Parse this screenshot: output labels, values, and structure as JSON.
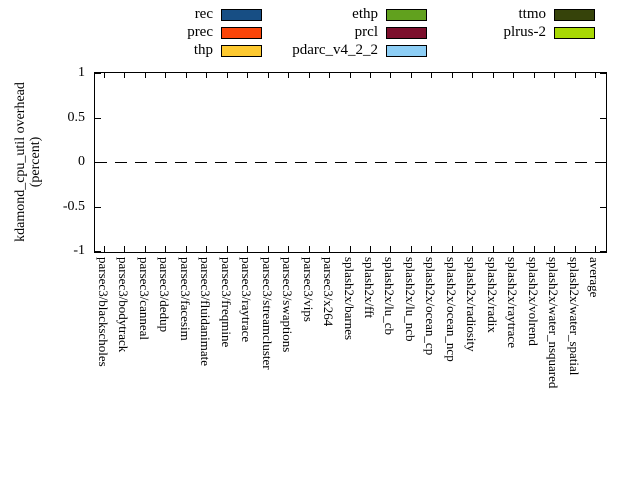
{
  "legend": {
    "columns": [
      {
        "items": [
          {
            "label": "rec",
            "color": "#174e84"
          },
          {
            "label": "prec",
            "color": "#fa4509"
          },
          {
            "label": "thp",
            "color": "#fdc930"
          }
        ]
      },
      {
        "items": [
          {
            "label": "ethp",
            "color": "#61a11e"
          },
          {
            "label": "prcl",
            "color": "#7c0f2c"
          },
          {
            "label": "pdarc_v4_2_2",
            "color": "#8dcef5"
          }
        ]
      },
      {
        "items": [
          {
            "label": "ttmo",
            "color": "#36430a"
          },
          {
            "label": "plrus-2",
            "color": "#a8d804"
          }
        ]
      }
    ]
  },
  "axes": {
    "ylabel_line1": "kdamond_cpu_util overhead",
    "ylabel_line2": "(percent)",
    "ytick_labels": [
      "1",
      "0.5",
      "0",
      "-0.5",
      "-1"
    ]
  },
  "chart_data": {
    "type": "bar",
    "title": "",
    "xlabel": "",
    "ylabel": "kdamond_cpu_util overhead (percent)",
    "ylim": [
      -1,
      1
    ],
    "yticks": [
      1,
      0.5,
      0,
      -0.5,
      -1
    ],
    "grid": false,
    "zero_line": "dashed",
    "legend_position": "top",
    "categories": [
      "parsec3/blackscholes",
      "parsec3/bodytrack",
      "parsec3/canneal",
      "parsec3/dedup",
      "parsec3/facesim",
      "parsec3/fluidanimate",
      "parsec3/freqmine",
      "parsec3/raytrace",
      "parsec3/streamcluster",
      "parsec3/swaptions",
      "parsec3/vips",
      "parsec3/x264",
      "splash2x/barnes",
      "splash2x/fft",
      "splash2x/lu_cb",
      "splash2x/lu_ncb",
      "splash2x/ocean_cp",
      "splash2x/ocean_ncp",
      "splash2x/radiosity",
      "splash2x/radix",
      "splash2x/raytrace",
      "splash2x/volrend",
      "splash2x/water_nsquared",
      "splash2x/water_spatial",
      "average"
    ],
    "series": [
      {
        "name": "rec",
        "color": "#174e84",
        "values": [
          0,
          0,
          0,
          0,
          0,
          0,
          0,
          0,
          0,
          0,
          0,
          0,
          0,
          0,
          0,
          0,
          0,
          0,
          0,
          0,
          0,
          0,
          0,
          0,
          0
        ]
      },
      {
        "name": "prec",
        "color": "#fa4509",
        "values": [
          0,
          0,
          0,
          0,
          0,
          0,
          0,
          0,
          0,
          0,
          0,
          0,
          0,
          0,
          0,
          0,
          0,
          0,
          0,
          0,
          0,
          0,
          0,
          0,
          0
        ]
      },
      {
        "name": "thp",
        "color": "#fdc930",
        "values": [
          0,
          0,
          0,
          0,
          0,
          0,
          0,
          0,
          0,
          0,
          0,
          0,
          0,
          0,
          0,
          0,
          0,
          0,
          0,
          0,
          0,
          0,
          0,
          0,
          0
        ]
      },
      {
        "name": "ethp",
        "color": "#61a11e",
        "values": [
          0,
          0,
          0,
          0,
          0,
          0,
          0,
          0,
          0,
          0,
          0,
          0,
          0,
          0,
          0,
          0,
          0,
          0,
          0,
          0,
          0,
          0,
          0,
          0,
          0
        ]
      },
      {
        "name": "prcl",
        "color": "#7c0f2c",
        "values": [
          0,
          0,
          0,
          0,
          0,
          0,
          0,
          0,
          0,
          0,
          0,
          0,
          0,
          0,
          0,
          0,
          0,
          0,
          0,
          0,
          0,
          0,
          0,
          0,
          0
        ]
      },
      {
        "name": "pdarc_v4_2_2",
        "color": "#8dcef5",
        "values": [
          0,
          0,
          0,
          0,
          0,
          0,
          0,
          0,
          0,
          0,
          0,
          0,
          0,
          0,
          0,
          0,
          0,
          0,
          0,
          0,
          0,
          0,
          0,
          0,
          0
        ]
      },
      {
        "name": "ttmo",
        "color": "#36430a",
        "values": [
          0,
          0,
          0,
          0,
          0,
          0,
          0,
          0,
          0,
          0,
          0,
          0,
          0,
          0,
          0,
          0,
          0,
          0,
          0,
          0,
          0,
          0,
          0,
          0,
          0
        ]
      },
      {
        "name": "plrus-2",
        "color": "#a8d804",
        "values": [
          0,
          0,
          0,
          0,
          0,
          0,
          0,
          0,
          0,
          0,
          0,
          0,
          0,
          0,
          0,
          0,
          0,
          0,
          0,
          0,
          0,
          0,
          0,
          0,
          0
        ]
      }
    ]
  }
}
